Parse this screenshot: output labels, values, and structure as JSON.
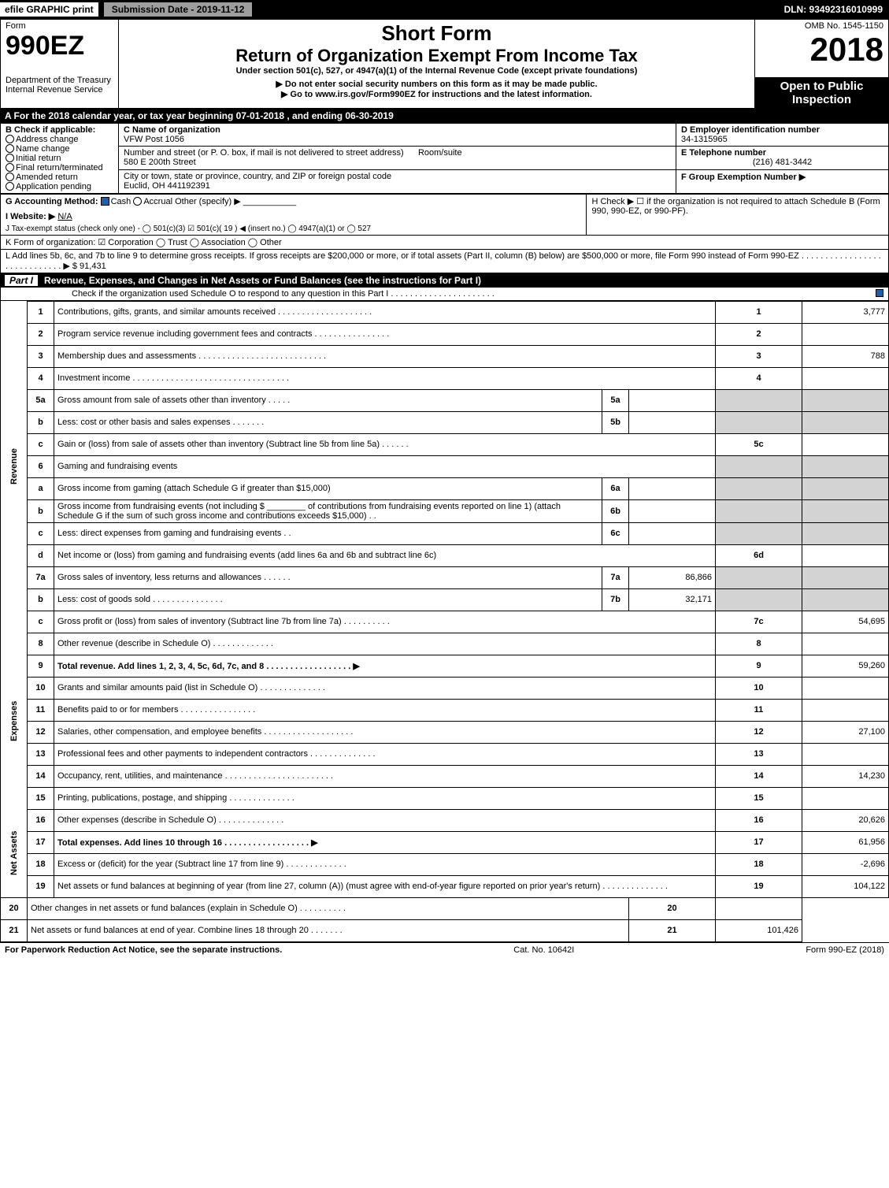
{
  "topbar": {
    "efile_prefix": "efile",
    "efile_rest": " GRAPHIC print",
    "submission_date_label": "Submission Date - 2019-11-12",
    "dln": "DLN: 93492316010999"
  },
  "header": {
    "form_word": "Form",
    "form_number": "990EZ",
    "dept": "Department of the Treasury",
    "irs": "Internal Revenue Service",
    "short_form": "Short Form",
    "return_title": "Return of Organization Exempt From Income Tax",
    "under_section": "Under section 501(c), 527, or 4947(a)(1) of the Internal Revenue Code (except private foundations)",
    "warn1": "▶ Do not enter social security numbers on this form as it may be made public.",
    "warn2": "▶ Go to www.irs.gov/Form990EZ for instructions and the latest information.",
    "omb": "OMB No. 1545-1150",
    "year": "2018",
    "open_to": "Open to Public Inspection"
  },
  "period": "A  For the 2018 calendar year, or tax year beginning 07-01-2018          , and ending 06-30-2019",
  "box_b": {
    "title": "B  Check if applicable:",
    "opts": [
      "Address change",
      "Name change",
      "Initial return",
      "Final return/terminated",
      "Amended return",
      "Application pending"
    ]
  },
  "box_c": {
    "label": "C Name of organization",
    "name": "VFW Post 1056",
    "addr_label": "Number and street (or P. O. box, if mail is not delivered to street address)",
    "room": "Room/suite",
    "street": "580 E 200th Street",
    "city_label": "City or town, state or province, country, and ZIP or foreign postal code",
    "city": "Euclid, OH  441192391"
  },
  "box_d": {
    "label": "D Employer identification number",
    "value": "34-1315965"
  },
  "box_e": {
    "label": "E Telephone number",
    "value": "(216) 481-3442"
  },
  "box_f": {
    "label": "F Group Exemption Number  ▶"
  },
  "line_g": {
    "label": "G Accounting Method:",
    "cash": "Cash",
    "accrual": "Accrual",
    "other": "Other (specify) ▶"
  },
  "line_h": "H  Check ▶ ☐ if the organization is not required to attach Schedule B (Form 990, 990-EZ, or 990-PF).",
  "line_i": {
    "label": "I Website: ▶",
    "value": "N/A"
  },
  "line_j": "J Tax-exempt status (check only one) -  ◯ 501(c)(3)  ☑ 501(c)( 19 ) ◀ (insert no.)  ◯ 4947(a)(1) or  ◯ 527",
  "line_k": "K Form of organization:  ☑ Corporation  ◯ Trust  ◯ Association  ◯ Other",
  "line_l": "L Add lines 5b, 6c, and 7b to line 9 to determine gross receipts. If gross receipts are $200,000 or more, or if total assets (Part II, column (B) below) are $500,000 or more, file Form 990 instead of Form 990-EZ . . . . . . . . . . . . . . . . . . . . . . . . . . . . . ▶ $ 91,431",
  "part1": {
    "title": "Revenue, Expenses, and Changes in Net Assets or Fund Balances (see the instructions for Part I)",
    "check_line": "Check if the organization used Schedule O to respond to any question in this Part I . . . . . . . . . . . . . . . . . . . . . ."
  },
  "sidelabels": {
    "rev": "Revenue",
    "exp": "Expenses",
    "na": "Net Assets"
  },
  "rows": [
    {
      "num": "1",
      "desc": "Contributions, gifts, grants, and similar amounts received . . . . . . . . . . . . . . . . . . . .",
      "box": "1",
      "amt": "3,777"
    },
    {
      "num": "2",
      "desc": "Program service revenue including government fees and contracts . . . . . . . . . . . . . . . .",
      "box": "2",
      "amt": ""
    },
    {
      "num": "3",
      "desc": "Membership dues and assessments . . . . . . . . . . . . . . . . . . . . . . . . . . .",
      "box": "3",
      "amt": "788"
    },
    {
      "num": "4",
      "desc": "Investment income . . . . . . . . . . . . . . . . . . . . . . . . . . . . . . . . .",
      "box": "4",
      "amt": ""
    },
    {
      "num": "5a",
      "desc": "Gross amount from sale of assets other than inventory . . . . .",
      "mid": "5a",
      "midamt": ""
    },
    {
      "num": "b",
      "desc": "Less: cost or other basis and sales expenses . . . . . . .",
      "mid": "5b",
      "midamt": ""
    },
    {
      "num": "c",
      "desc": "Gain or (loss) from sale of assets other than inventory (Subtract line 5b from line 5a) . . . . . .",
      "box": "5c",
      "amt": ""
    },
    {
      "num": "6",
      "desc": "Gaming and fundraising events"
    },
    {
      "num": "a",
      "desc": "Gross income from gaming (attach Schedule G if greater than $15,000)",
      "mid": "6a",
      "midamt": ""
    },
    {
      "num": "b",
      "desc": "Gross income from fundraising events (not including $ ________ of contributions from fundraising events reported on line 1) (attach Schedule G if the sum of such gross income and contributions exceeds $15,000)    . .",
      "mid": "6b",
      "midamt": ""
    },
    {
      "num": "c",
      "desc": "Less: direct expenses from gaming and fundraising events     . .",
      "mid": "6c",
      "midamt": ""
    },
    {
      "num": "d",
      "desc": "Net income or (loss) from gaming and fundraising events (add lines 6a and 6b and subtract line 6c)",
      "box": "6d",
      "amt": ""
    },
    {
      "num": "7a",
      "desc": "Gross sales of inventory, less returns and allowances . . . . . .",
      "mid": "7a",
      "midamt": "86,866"
    },
    {
      "num": "b",
      "desc": "Less: cost of goods sold        . . . . . . . . . . . . . . .",
      "mid": "7b",
      "midamt": "32,171"
    },
    {
      "num": "c",
      "desc": "Gross profit or (loss) from sales of inventory (Subtract line 7b from line 7a) . . . . . . . . . .",
      "box": "7c",
      "amt": "54,695"
    },
    {
      "num": "8",
      "desc": "Other revenue (describe in Schedule O)                   . . . . . . . . . . . . .",
      "box": "8",
      "amt": ""
    },
    {
      "num": "9",
      "desc": "Total revenue. Add lines 1, 2, 3, 4, 5c, 6d, 7c, and 8 . . . . . . . . . . . . . . . . . .  ▶",
      "box": "9",
      "amt": "59,260",
      "bold": true
    },
    {
      "num": "10",
      "desc": "Grants and similar amounts paid (list in Schedule O)        . . . . . . . . . . . . . .",
      "box": "10",
      "amt": ""
    },
    {
      "num": "11",
      "desc": "Benefits paid to or for members                . . . . . . . . . . . . . . . .",
      "box": "11",
      "amt": ""
    },
    {
      "num": "12",
      "desc": "Salaries, other compensation, and employee benefits . . . . . . . . . . . . . . . . . . .",
      "box": "12",
      "amt": "27,100"
    },
    {
      "num": "13",
      "desc": "Professional fees and other payments to independent contractors . . . . . . . . . . . . . .",
      "box": "13",
      "amt": ""
    },
    {
      "num": "14",
      "desc": "Occupancy, rent, utilities, and maintenance . . . . . . . . . . . . . . . . . . . . . . .",
      "box": "14",
      "amt": "14,230"
    },
    {
      "num": "15",
      "desc": "Printing, publications, postage, and shipping           . . . . . . . . . . . . . .",
      "box": "15",
      "amt": ""
    },
    {
      "num": "16",
      "desc": "Other expenses (describe in Schedule O)             . . . . . . . . . . . . . .",
      "box": "16",
      "amt": "20,626"
    },
    {
      "num": "17",
      "desc": "Total expenses. Add lines 10 through 16       . . . . . . . . . . . . . . . . . .  ▶",
      "box": "17",
      "amt": "61,956",
      "bold": true
    },
    {
      "num": "18",
      "desc": "Excess or (deficit) for the year (Subtract line 17 from line 9)      . . . . . . . . . . . . .",
      "box": "18",
      "amt": "-2,696"
    },
    {
      "num": "19",
      "desc": "Net assets or fund balances at beginning of year (from line 27, column (A)) (must agree with end-of-year figure reported on prior year's return)         . . . . . . . . . . . . . .",
      "box": "19",
      "amt": "104,122"
    },
    {
      "num": "20",
      "desc": "Other changes in net assets or fund balances (explain in Schedule O)    . . . . . . . . . .",
      "box": "20",
      "amt": ""
    },
    {
      "num": "21",
      "desc": "Net assets or fund balances at end of year. Combine lines 18 through 20       . . . . . . .",
      "box": "21",
      "amt": "101,426"
    }
  ],
  "footer": {
    "left": "For Paperwork Reduction Act Notice, see the separate instructions.",
    "mid": "Cat. No. 10642I",
    "right": "Form 990-EZ (2018)"
  }
}
